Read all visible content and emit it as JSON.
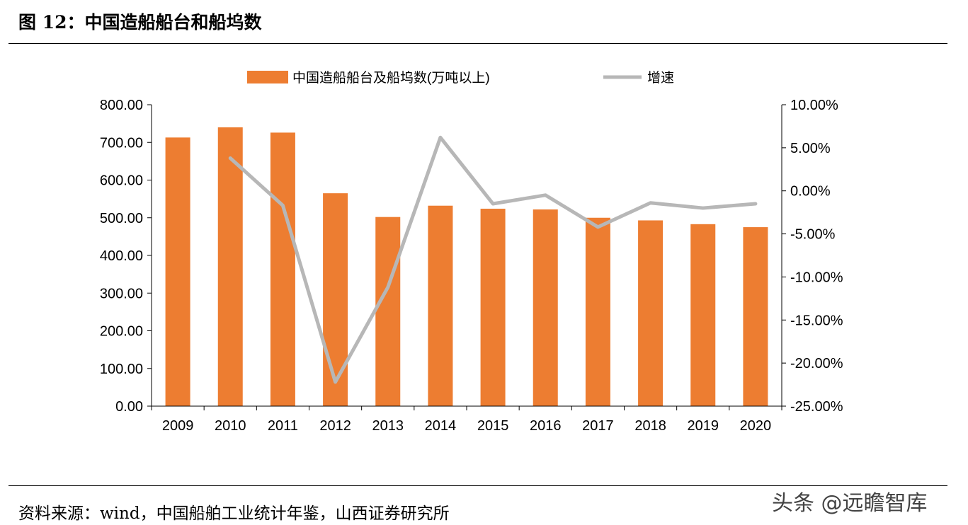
{
  "figure": {
    "title": "图 12：中国造船船台和船坞数",
    "source": "资料来源：wind，中国船舶工业统计年鉴，山西证券研究所",
    "watermark": "头条 @远瞻智库"
  },
  "colors": {
    "bar": "#ED7D31",
    "line": "#B7B7B7",
    "axis": "#000000"
  },
  "chart_data": {
    "type": "bar",
    "categories": [
      "2009",
      "2010",
      "2011",
      "2012",
      "2013",
      "2014",
      "2015",
      "2016",
      "2017",
      "2018",
      "2019",
      "2020"
    ],
    "series": [
      {
        "name": "中国造船船台及船坞数(万吨以上)",
        "type": "bar",
        "axis": "left",
        "values": [
          713,
          740,
          726,
          565,
          502,
          532,
          524,
          522,
          500,
          493,
          483,
          475
        ]
      },
      {
        "name": "增速",
        "type": "line",
        "axis": "right",
        "values": [
          null,
          3.8,
          -1.7,
          -22.2,
          -11.2,
          6.2,
          -1.5,
          -0.5,
          -4.2,
          -1.4,
          -2.0,
          -1.5
        ]
      }
    ],
    "y_left": {
      "min": 0,
      "max": 800,
      "step": 100,
      "tick_labels": [
        "0.00",
        "100.00",
        "200.00",
        "300.00",
        "400.00",
        "500.00",
        "600.00",
        "700.00",
        "800.00"
      ]
    },
    "y_right": {
      "min": -25,
      "max": 10,
      "step": 5,
      "tick_labels": [
        "-25.00%",
        "-20.00%",
        "-15.00%",
        "-10.00%",
        "-5.00%",
        "0.00%",
        "5.00%",
        "10.00%"
      ]
    },
    "legend": "top-center",
    "grid": false
  }
}
